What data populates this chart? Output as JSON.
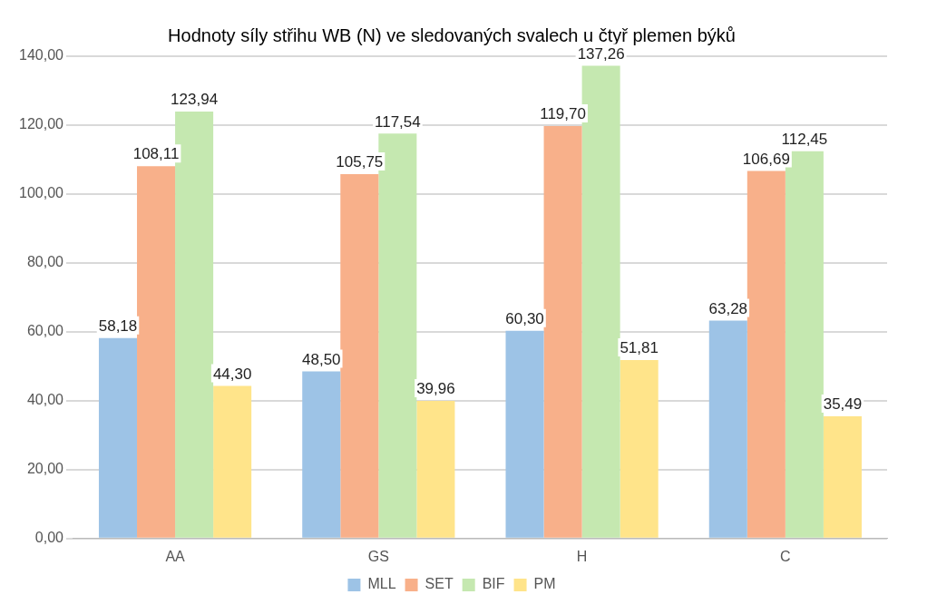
{
  "chart_data": {
    "type": "bar",
    "title": "Hodnoty síly střihu WB (N) ve sledovaných svalech u čtyř plemen býků",
    "categories": [
      "AA",
      "GS",
      "H",
      "C"
    ],
    "series": [
      {
        "name": "MLL",
        "color": "#9dc3e6",
        "values": [
          58.18,
          48.5,
          60.3,
          63.28
        ],
        "value_labels": [
          "58,18",
          "48,50",
          "60,30",
          "63,28"
        ]
      },
      {
        "name": "SET",
        "color": "#f8b08a",
        "values": [
          108.11,
          105.75,
          119.7,
          106.69
        ],
        "value_labels": [
          "108,11",
          "105,75",
          "119,70",
          "106,69"
        ]
      },
      {
        "name": "BIF",
        "color": "#c5e8b0",
        "values": [
          123.94,
          117.54,
          137.26,
          112.45
        ],
        "value_labels": [
          "123,94",
          "117,54",
          "137,26",
          "112,45"
        ]
      },
      {
        "name": "PM",
        "color": "#ffe48a",
        "values": [
          44.3,
          39.96,
          51.81,
          35.49
        ],
        "value_labels": [
          "44,30",
          "39,96",
          "51,81",
          "35,49"
        ]
      }
    ],
    "ylim": [
      0,
      140
    ],
    "yticks": [
      {
        "value": 0,
        "label": "0,00"
      },
      {
        "value": 20,
        "label": "20,00"
      },
      {
        "value": 40,
        "label": "40,00"
      },
      {
        "value": 60,
        "label": "60,00"
      },
      {
        "value": 80,
        "label": "80,00"
      },
      {
        "value": 100,
        "label": "100,00"
      },
      {
        "value": 120,
        "label": "120,00"
      },
      {
        "value": 140,
        "label": "140,00"
      }
    ],
    "grid": "y",
    "legend": "bottom"
  }
}
